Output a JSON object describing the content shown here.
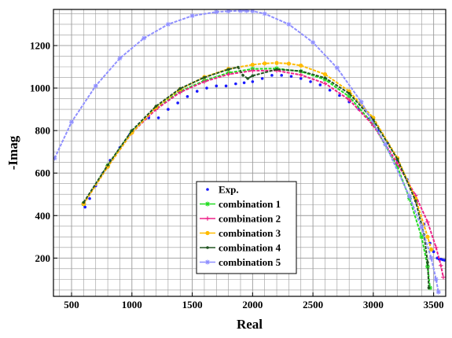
{
  "chart_data": {
    "type": "scatter",
    "xlabel": "Real",
    "ylabel": "-Imag",
    "xlim": [
      350,
      3600
    ],
    "ylim": [
      20,
      1370
    ],
    "xticks": [
      500,
      1000,
      1500,
      2000,
      2500,
      3000,
      3500
    ],
    "yticks": [
      200,
      400,
      600,
      800,
      1000,
      1200
    ],
    "grid": true,
    "legend_position": "bottom-center",
    "series": [
      {
        "name": "Exp.",
        "color": "#1a1aff",
        "marker": "dot",
        "x": [
          612,
          650,
          700,
          760,
          820,
          900,
          980,
          1060,
          1140,
          1220,
          1300,
          1380,
          1460,
          1540,
          1620,
          1700,
          1780,
          1860,
          1930,
          2000,
          2080,
          2160,
          2240,
          2320,
          2400,
          2480,
          2560,
          2640,
          2720,
          2800,
          2880,
          2960,
          3040,
          3120,
          3200,
          3280,
          3360,
          3420,
          3470,
          3500,
          3530,
          3545,
          3560,
          3575,
          3590
        ],
        "y": [
          440,
          480,
          540,
          600,
          660,
          720,
          780,
          830,
          860,
          860,
          900,
          930,
          960,
          985,
          1000,
          1010,
          1010,
          1020,
          1025,
          1030,
          1045,
          1060,
          1060,
          1055,
          1045,
          1030,
          1015,
          990,
          965,
          935,
          900,
          855,
          800,
          740,
          660,
          570,
          460,
          360,
          270,
          230,
          200,
          195,
          195,
          192,
          190
        ]
      },
      {
        "name": "combination 1",
        "color": "#22dd22",
        "marker": "star",
        "x": [
          600,
          800,
          1000,
          1200,
          1400,
          1600,
          1800,
          2000,
          2200,
          2400,
          2600,
          2800,
          3000,
          3200,
          3300,
          3400,
          3450,
          3470
        ],
        "y": [
          455,
          635,
          795,
          905,
          985,
          1035,
          1072,
          1090,
          1092,
          1078,
          1040,
          960,
          830,
          630,
          480,
          300,
          160,
          60
        ]
      },
      {
        "name": "combination 2",
        "color": "#ee2288",
        "marker": "plus",
        "x": [
          600,
          800,
          1000,
          1200,
          1400,
          1600,
          1800,
          2000,
          2200,
          2400,
          2600,
          2800,
          3000,
          3200,
          3350,
          3450,
          3520,
          3560,
          3580
        ],
        "y": [
          455,
          630,
          790,
          900,
          980,
          1030,
          1065,
          1082,
          1082,
          1062,
          1022,
          945,
          825,
          645,
          495,
          370,
          250,
          165,
          110
        ]
      },
      {
        "name": "combination 3",
        "color": "#ffbb00",
        "marker": "circle",
        "x": [
          600,
          800,
          1000,
          1200,
          1400,
          1600,
          1800,
          2000,
          2100,
          2200,
          2300,
          2400,
          2600,
          2800,
          3000,
          3200,
          3350,
          3450,
          3480
        ],
        "y": [
          455,
          630,
          790,
          910,
          995,
          1052,
          1090,
          1110,
          1116,
          1118,
          1115,
          1106,
          1065,
          985,
          860,
          670,
          480,
          300,
          240
        ]
      },
      {
        "name": "combination 4",
        "color": "#225522",
        "marker": "dot",
        "x": [
          600,
          800,
          1000,
          1200,
          1400,
          1600,
          1800,
          1880,
          1920,
          1960,
          2000,
          2200,
          2400,
          2600,
          2800,
          3000,
          3200,
          3350,
          3420,
          3450,
          3460
        ],
        "y": [
          462,
          638,
          800,
          915,
          998,
          1050,
          1088,
          1098,
          1060,
          1045,
          1058,
          1088,
          1080,
          1048,
          975,
          850,
          665,
          470,
          310,
          180,
          60
        ]
      },
      {
        "name": "combination 5",
        "color": "#8f8fff",
        "marker": "star",
        "x": [
          360,
          500,
          700,
          900,
          1100,
          1300,
          1500,
          1700,
          1800,
          1900,
          1950,
          2000,
          2100,
          2300,
          2500,
          2700,
          2900,
          3100,
          3300,
          3400,
          3480,
          3520,
          3540
        ],
        "y": [
          670,
          840,
          1010,
          1140,
          1235,
          1300,
          1340,
          1358,
          1362,
          1364,
          1364,
          1362,
          1350,
          1300,
          1215,
          1095,
          935,
          735,
          490,
          345,
          200,
          100,
          40
        ]
      }
    ]
  }
}
